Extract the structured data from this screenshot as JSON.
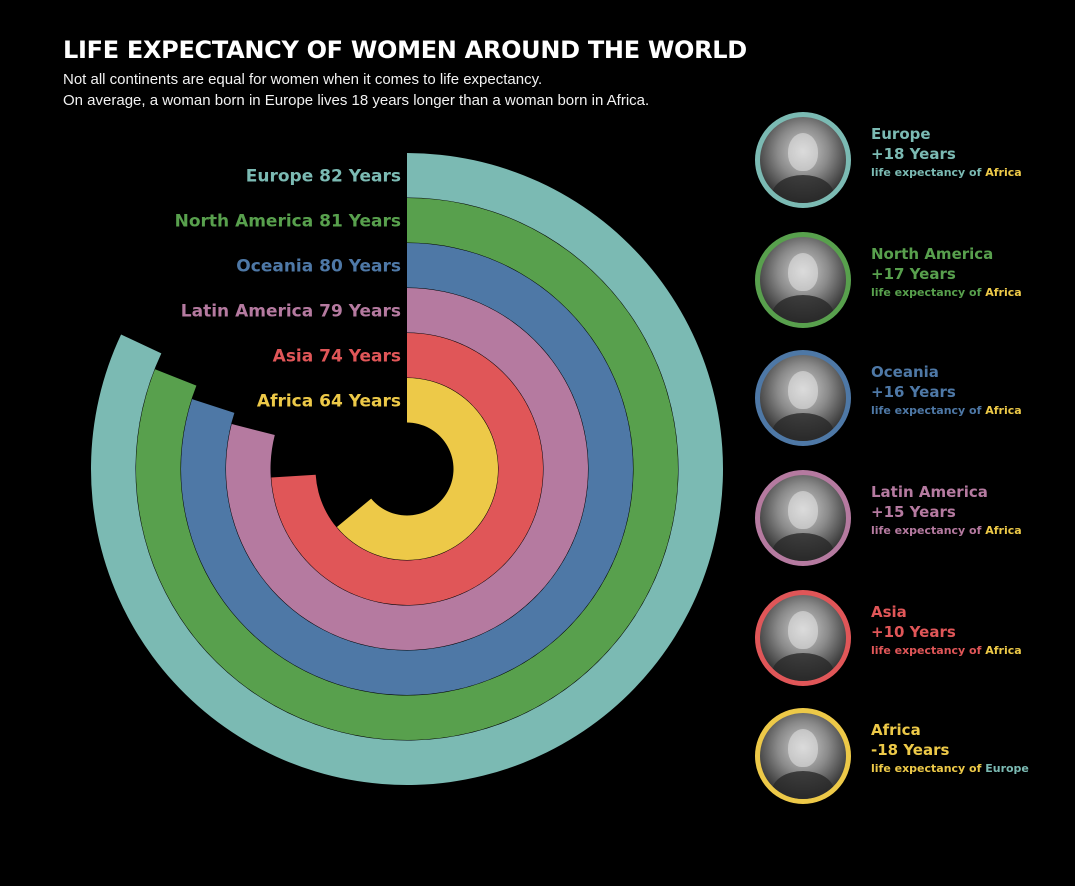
{
  "title": "LIFE EXPECTANCY OF WOMEN AROUND THE WORLD",
  "subtitle_lines": [
    "Not all continents are equal for women when it comes to life expectancy.",
    "On average, a woman born in Europe lives 18 years longer than a woman born in Africa."
  ],
  "chart_data": {
    "type": "radial-bar",
    "unit": "Years",
    "categories": [
      "Europe",
      "North America",
      "Oceania",
      "Latin America",
      "Asia",
      "Africa"
    ],
    "values": [
      82,
      81,
      80,
      79,
      74,
      64
    ],
    "colors": [
      "#7bbab3",
      "#58a04d",
      "#4e78a6",
      "#b57aa0",
      "#e05658",
      "#edc948"
    ],
    "value_labels": [
      "82 Years",
      "81 Years",
      "80 Years",
      "79 Years",
      "74 Years",
      "64 Years"
    ]
  },
  "sidebar": {
    "cards": [
      {
        "name": "Europe",
        "diff": "+18 Years",
        "note_prefix": "life expectancy of",
        "note_ref": "Africa",
        "color": "#7bbab3",
        "ref_color": "#edc948",
        "photo": "woman-portrait"
      },
      {
        "name": "North America",
        "diff": "+17 Years",
        "note_prefix": "life expectancy of",
        "note_ref": "Africa",
        "color": "#58a04d",
        "ref_color": "#edc948",
        "photo": "woman-portrait"
      },
      {
        "name": "Oceania",
        "diff": "+16 Years",
        "note_prefix": "life expectancy of",
        "note_ref": "Africa",
        "color": "#4e78a6",
        "ref_color": "#edc948",
        "photo": "woman-portrait"
      },
      {
        "name": "Latin America",
        "diff": "+15 Years",
        "note_prefix": "life expectancy of",
        "note_ref": "Africa",
        "color": "#b57aa0",
        "ref_color": "#edc948",
        "photo": "woman-portrait"
      },
      {
        "name": "Asia",
        "diff": "+10 Years",
        "note_prefix": "life expectancy of",
        "note_ref": "Africa",
        "color": "#e05658",
        "ref_color": "#edc948",
        "photo": "woman-portrait"
      },
      {
        "name": "Africa",
        "diff": "-18 Years",
        "note_prefix": "life expectancy of",
        "note_ref": "Europe",
        "color": "#edc948",
        "ref_color": "#7bbab3",
        "photo": "woman-portrait"
      }
    ]
  }
}
